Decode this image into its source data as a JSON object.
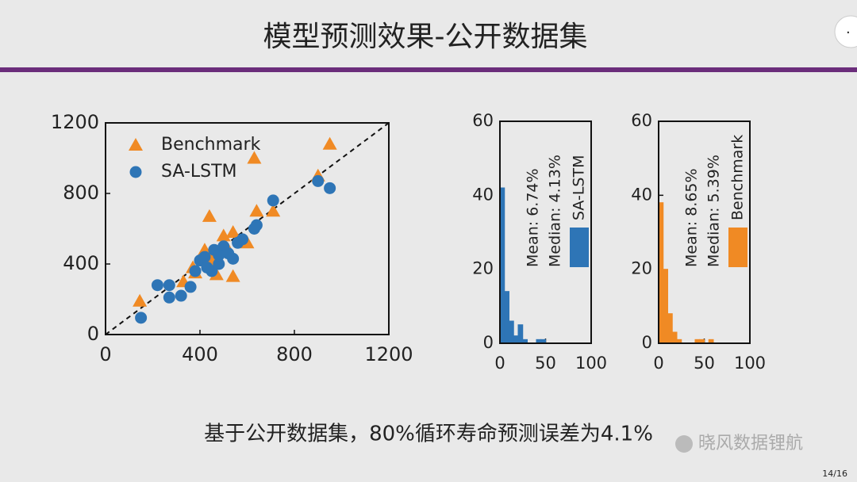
{
  "title": "模型预测效果-公开数据集",
  "caption": "基于公开数据集，80%循环寿命预测误差为4.1%",
  "watermark": "晓风数据锂航",
  "page_number": "14/16",
  "chart_data": [
    {
      "type": "scatter",
      "xlim": [
        0,
        1200
      ],
      "ylim": [
        0,
        1200
      ],
      "xticks": [
        0,
        400,
        800,
        1200
      ],
      "yticks": [
        0,
        400,
        800,
        1200
      ],
      "legend": "upper left",
      "series": [
        {
          "name": "Benchmark",
          "color": "#f08a24",
          "marker": "triangle",
          "x": [
            145,
            330,
            370,
            420,
            440,
            470,
            500,
            540,
            540,
            600,
            630,
            640,
            710,
            900,
            950,
            380,
            450,
            520
          ],
          "values": [
            190,
            300,
            380,
            480,
            670,
            340,
            560,
            580,
            330,
            520,
            1000,
            700,
            700,
            900,
            1080,
            350,
            420,
            480
          ]
        },
        {
          "name": "SA-LSTM",
          "color": "#2e75b6",
          "marker": "circle",
          "x": [
            150,
            220,
            270,
            270,
            320,
            360,
            380,
            400,
            420,
            450,
            460,
            480,
            500,
            520,
            540,
            560,
            580,
            630,
            640,
            710,
            900,
            950,
            430,
            480
          ],
          "values": [
            95,
            280,
            280,
            210,
            220,
            270,
            360,
            420,
            440,
            360,
            480,
            400,
            500,
            460,
            430,
            520,
            540,
            600,
            620,
            760,
            870,
            830,
            380,
            450
          ]
        }
      ]
    },
    {
      "type": "histogram",
      "xlim": [
        0,
        100
      ],
      "ylim": [
        0,
        60
      ],
      "xticks": [
        0,
        50,
        100
      ],
      "yticks": [
        0,
        20,
        40,
        60
      ],
      "series": [
        {
          "name": "SA-LSTM",
          "color": "#2e75b6",
          "bins": [
            0,
            5,
            10,
            15,
            20,
            25,
            30,
            35,
            40,
            45,
            50
          ],
          "values": [
            42,
            14,
            6,
            2,
            5,
            1,
            0,
            0,
            1,
            1
          ]
        }
      ],
      "annotations": [
        "Mean: 6.74%",
        "Median: 4.13%"
      ]
    },
    {
      "type": "histogram",
      "xlim": [
        0,
        100
      ],
      "ylim": [
        0,
        60
      ],
      "xticks": [
        0,
        50,
        100
      ],
      "yticks": [
        0,
        20,
        40,
        60
      ],
      "series": [
        {
          "name": "Benchmark",
          "color": "#f08a24",
          "bins": [
            0,
            5,
            10,
            15,
            20,
            25,
            30,
            35,
            40,
            45,
            50,
            55,
            60,
            65
          ],
          "values": [
            38,
            20,
            8,
            3,
            1,
            0,
            0,
            0,
            1,
            1,
            0,
            1,
            0
          ]
        }
      ],
      "annotations": [
        "Mean: 8.65%",
        "Median: 5.39%"
      ]
    }
  ]
}
